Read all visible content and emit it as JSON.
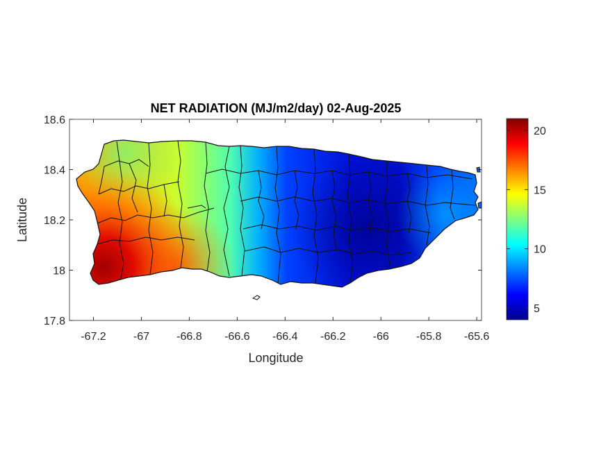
{
  "chart_data": {
    "type": "heatmap",
    "title": "NET RADIATION (MJ/m2/day) 02-Aug-2025",
    "xlabel": "Longitude",
    "ylabel": "Latitude",
    "xlim": [
      -67.3,
      -65.58
    ],
    "ylim": [
      17.8,
      18.6
    ],
    "xticks": [
      -67.2,
      -67,
      -66.8,
      -66.6,
      -66.4,
      -66.2,
      -66,
      -65.8,
      -65.6
    ],
    "xtick_labels": [
      "-67.2",
      "-67",
      "-66.8",
      "-66.6",
      "-66.4",
      "-66.2",
      "-66",
      "-65.8",
      "-65.6"
    ],
    "yticks": [
      17.8,
      18,
      18.2,
      18.4,
      18.6
    ],
    "ytick_labels": [
      "17.8",
      "18",
      "18.2",
      "18.4",
      "18.6"
    ],
    "colorbar": {
      "colormap": "jet",
      "range": [
        4,
        21
      ],
      "ticks": [
        5,
        10,
        15,
        20
      ],
      "tick_labels": [
        "5",
        "10",
        "15",
        "20"
      ]
    },
    "value_gradient_west_to_east": [
      {
        "lon": -67.2,
        "lat_south": 19,
        "lat_north": 14
      },
      {
        "lon": -67.0,
        "lat_south": 18,
        "lat_north": 13
      },
      {
        "lon": -66.8,
        "lat_south": 16,
        "lat_north": 14
      },
      {
        "lon": -66.6,
        "lat_south": 11,
        "lat_north": 11
      },
      {
        "lon": -66.4,
        "lat_south": 6,
        "lat_north": 6
      },
      {
        "lon": -66.2,
        "lat_south": 5,
        "lat_north": 5
      },
      {
        "lon": -66.0,
        "lat_south": 4.5,
        "lat_north": 5
      },
      {
        "lon": -65.8,
        "lat_south": 7,
        "lat_north": 7
      },
      {
        "lon": -65.65,
        "lat_south": 8,
        "lat_north": 8
      }
    ],
    "grid": false,
    "legend": "colorbar-right"
  }
}
